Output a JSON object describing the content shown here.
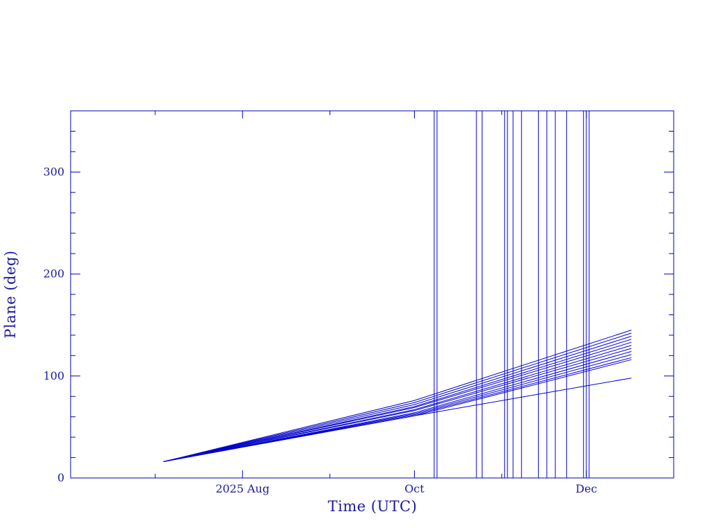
{
  "chart_data": {
    "type": "line",
    "xlabel": "Time (UTC)",
    "ylabel": "Plane (deg)",
    "xlim": [
      "2025-06-01",
      "2026-01-01"
    ],
    "ylim": [
      0,
      360
    ],
    "x_ticks": [
      {
        "date": "2025-08-01",
        "label": "2025 Aug"
      },
      {
        "date": "2025-10-01",
        "label": "Oct"
      },
      {
        "date": "2025-12-01",
        "label": "Dec"
      }
    ],
    "y_ticks": [
      0,
      100,
      200,
      300
    ],
    "series_color": "#0000cc",
    "series": [
      {
        "x": [
          "2025-07-04",
          "2025-10-01",
          "2025-12-17"
        ],
        "values": [
          16,
          61,
          98
        ]
      },
      {
        "x": [
          "2025-07-04",
          "2025-10-01",
          "2025-12-17"
        ],
        "values": [
          16,
          61,
          116
        ]
      },
      {
        "x": [
          "2025-07-04",
          "2025-10-01",
          "2025-12-17"
        ],
        "values": [
          16,
          62,
          118
        ]
      },
      {
        "x": [
          "2025-07-04",
          "2025-10-01",
          "2025-12-17"
        ],
        "values": [
          16,
          63,
          121
        ]
      },
      {
        "x": [
          "2025-07-04",
          "2025-10-01",
          "2025-12-17"
        ],
        "values": [
          16,
          64,
          124
        ]
      },
      {
        "x": [
          "2025-07-04",
          "2025-10-01",
          "2025-12-17"
        ],
        "values": [
          16,
          66,
          127
        ]
      },
      {
        "x": [
          "2025-07-04",
          "2025-10-01",
          "2025-12-17"
        ],
        "values": [
          16,
          67,
          130
        ]
      },
      {
        "x": [
          "2025-07-04",
          "2025-10-01",
          "2025-12-17"
        ],
        "values": [
          16,
          69,
          133
        ]
      },
      {
        "x": [
          "2025-07-04",
          "2025-10-01",
          "2025-12-17"
        ],
        "values": [
          16,
          70,
          136
        ]
      },
      {
        "x": [
          "2025-07-04",
          "2025-10-01",
          "2025-12-17"
        ],
        "values": [
          16,
          72,
          139
        ]
      },
      {
        "x": [
          "2025-07-04",
          "2025-10-01",
          "2025-12-17"
        ],
        "values": [
          16,
          74,
          142
        ]
      },
      {
        "x": [
          "2025-07-04",
          "2025-10-01",
          "2025-12-17"
        ],
        "values": [
          16,
          76,
          145
        ]
      }
    ],
    "vertical_lines": [
      "2025-10-08",
      "2025-10-09",
      "2025-10-23",
      "2025-10-25",
      "2025-11-02",
      "2025-11-03",
      "2025-11-05",
      "2025-11-08",
      "2025-11-14",
      "2025-11-17",
      "2025-11-20",
      "2025-11-24",
      "2025-11-30",
      "2025-12-01",
      "2025-12-02"
    ]
  }
}
